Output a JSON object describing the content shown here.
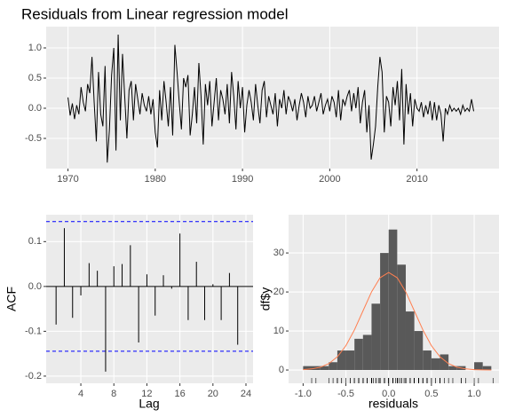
{
  "chart_data": [
    {
      "type": "line",
      "title": "Residuals from Linear regression model",
      "color": "#000000",
      "x": [
        1970,
        1970.25,
        1970.5,
        1970.75,
        1971,
        1971.25,
        1971.5,
        1971.75,
        1972,
        1972.25,
        1972.5,
        1972.75,
        1973,
        1973.25,
        1973.5,
        1973.75,
        1974,
        1974.25,
        1974.5,
        1974.75,
        1975,
        1975.25,
        1975.5,
        1975.75,
        1976,
        1976.25,
        1976.5,
        1976.75,
        1977,
        1977.25,
        1977.5,
        1977.75,
        1978,
        1978.25,
        1978.5,
        1978.75,
        1979,
        1979.25,
        1979.5,
        1979.75,
        1980,
        1980.25,
        1980.5,
        1980.75,
        1981,
        1981.25,
        1981.5,
        1981.75,
        1982,
        1982.25,
        1982.5,
        1982.75,
        1983,
        1983.25,
        1983.5,
        1983.75,
        1984,
        1984.25,
        1984.5,
        1984.75,
        1985,
        1985.25,
        1985.5,
        1985.75,
        1986,
        1986.25,
        1986.5,
        1986.75,
        1987,
        1987.25,
        1987.5,
        1987.75,
        1988,
        1988.25,
        1988.5,
        1988.75,
        1989,
        1989.25,
        1989.5,
        1989.75,
        1990,
        1990.25,
        1990.5,
        1990.75,
        1991,
        1991.25,
        1991.5,
        1991.75,
        1992,
        1992.25,
        1992.5,
        1992.75,
        1993,
        1993.25,
        1993.5,
        1993.75,
        1994,
        1994.25,
        1994.5,
        1994.75,
        1995,
        1995.25,
        1995.5,
        1995.75,
        1996,
        1996.25,
        1996.5,
        1996.75,
        1997,
        1997.25,
        1997.5,
        1997.75,
        1998,
        1998.25,
        1998.5,
        1998.75,
        1999,
        1999.25,
        1999.5,
        1999.75,
        2000,
        2000.25,
        2000.5,
        2000.75,
        2001,
        2001.25,
        2001.5,
        2001.75,
        2002,
        2002.25,
        2002.5,
        2002.75,
        2003,
        2003.25,
        2003.5,
        2003.75,
        2004,
        2004.25,
        2004.5,
        2004.75,
        2005,
        2005.25,
        2005.5,
        2005.75,
        2006,
        2006.25,
        2006.5,
        2006.75,
        2007,
        2007.25,
        2007.5,
        2007.75,
        2008,
        2008.25,
        2008.5,
        2008.75,
        2009,
        2009.25,
        2009.5,
        2009.75,
        2010,
        2010.25,
        2010.5,
        2010.75,
        2011,
        2011.25,
        2011.5,
        2011.75,
        2012,
        2012.25,
        2012.5,
        2012.75,
        2013,
        2013.25,
        2013.5,
        2013.75,
        2014,
        2014.25,
        2014.5,
        2014.75,
        2015,
        2015.25,
        2015.5,
        2015.75,
        2016,
        2016.25,
        2016.5
      ],
      "values": [
        0.18,
        -0.12,
        0.08,
        -0.18,
        0.05,
        -0.1,
        0.35,
        0.1,
        -0.05,
        0.4,
        0.25,
        0.85,
        0.1,
        -0.55,
        0.6,
        -0.1,
        -0.3,
        0.7,
        -0.9,
        -0.35,
        0.55,
        1.0,
        -0.7,
        1.22,
        -0.2,
        0.9,
        0.2,
        -0.5,
        0.3,
        0.45,
        -0.2,
        0.4,
        0.15,
        -0.1,
        0.25,
        0.05,
        -0.05,
        0.2,
        -0.1,
        0.15,
        -0.4,
        -0.65,
        0.3,
        -0.2,
        0.45,
        0.1,
        -0.3,
        0.35,
        -0.45,
        1.05,
        0.6,
        0.1,
        -0.35,
        0.5,
        0.35,
        0.55,
        -0.45,
        -0.1,
        0.35,
        -0.25,
        0.75,
        0.2,
        -0.6,
        0.4,
        0.05,
        0.45,
        -0.3,
        0.1,
        0.5,
        -0.2,
        0.3,
        0.15,
        -0.1,
        0.4,
        -0.25,
        0.6,
        0.2,
        -0.35,
        0.45,
        0.0,
        0.35,
        -0.4,
        0.05,
        0.3,
        0.1,
        -0.2,
        0.4,
        0.05,
        -0.25,
        0.3,
        0.45,
        -0.15,
        0.2,
        0.05,
        -0.1,
        0.25,
        -0.3,
        0.15,
        0.0,
        0.3,
        -0.1,
        0.2,
        0.1,
        -0.05,
        0.15,
        -0.2,
        0.05,
        0.25,
        0.1,
        -0.15,
        0.2,
        0.0,
        0.05,
        0.2,
        -0.05,
        0.1,
        0.25,
        -0.1,
        0.05,
        0.15,
        -0.05,
        0.2,
        0.1,
        -0.15,
        0.3,
        -0.2,
        0.15,
        0.05,
        0.2,
        0.3,
        -0.05,
        0.25,
        0.0,
        0.35,
        -0.25,
        0.1,
        0.3,
        -0.4,
        0.05,
        -0.85,
        -0.6,
        -0.3,
        0.35,
        0.85,
        0.6,
        -0.4,
        0.2,
        0.1,
        -0.3,
        0.35,
        0.05,
        0.45,
        -0.2,
        0.65,
        -0.6,
        0.4,
        -0.1,
        0.25,
        -0.3,
        0.15,
        0.0,
        -0.05,
        0.1,
        -0.15,
        0.05,
        -0.1,
        0.12,
        -0.2,
        0.1,
        -0.2,
        0.05,
        -0.1,
        -0.55,
        0.0,
        -0.1,
        0.05,
        -0.05,
        0.0,
        -0.05,
        0.0,
        -0.1,
        0.05,
        -0.05,
        0.0,
        -0.05,
        0.15,
        -0.05
      ],
      "xlim": [
        1967.5,
        2019.4
      ],
      "ylim": [
        -1.0,
        1.353
      ],
      "xticks": [
        1970,
        1980,
        1990,
        2000,
        2010
      ],
      "yticks": [
        {
          "value": -0.5,
          "label": "-0.5"
        },
        {
          "value": 0,
          "label": "0.0"
        },
        {
          "value": 0.5,
          "label": "0.5"
        },
        {
          "value": 1.0,
          "label": "1.0"
        }
      ],
      "grid": true
    },
    {
      "type": "acf",
      "x_label": "Lag",
      "y_label": "ACF",
      "color": "#000000",
      "ci_color": "#0000FF",
      "x": [
        1,
        2,
        3,
        4,
        5,
        6,
        7,
        8,
        9,
        10,
        11,
        12,
        13,
        14,
        15,
        16,
        17,
        18,
        19,
        20,
        21,
        22,
        23
      ],
      "values": [
        -0.085,
        0.13,
        -0.07,
        -0.02,
        0.052,
        0.035,
        -0.19,
        0.045,
        0.05,
        0.092,
        -0.125,
        0.027,
        -0.065,
        0.025,
        -0.005,
        0.118,
        -0.075,
        0.055,
        -0.075,
        0.005,
        -0.075,
        0.03,
        -0.13
      ],
      "ci_bounds": [
        -0.1446,
        0.1446
      ],
      "xlim": [
        -0.2,
        24.86
      ],
      "ylim": [
        -0.216,
        0.16
      ],
      "xticks": [
        4,
        8,
        12,
        16,
        20,
        24
      ],
      "yticks": [
        -0.2,
        -0.1,
        {
          "value": 0,
          "label": "0.0"
        },
        0.1
      ],
      "grid": true
    },
    {
      "type": "histogram",
      "x_label": "residuals",
      "y_label": "df$y",
      "color": "#595959",
      "curve_color": "#FF7F50",
      "bins": [
        -1.0,
        -0.9,
        -0.8,
        -0.7,
        -0.6,
        -0.5,
        -0.4,
        -0.3,
        -0.2,
        -0.1,
        0,
        0.1,
        0.2,
        0.3,
        0.4,
        0.5,
        0.6,
        0.7,
        0.8,
        0.9,
        1.0,
        1.1,
        1.2
      ],
      "counts": [
        1,
        1,
        1,
        2,
        5,
        5,
        8,
        9,
        17,
        30,
        36,
        27,
        15,
        10,
        5,
        3,
        4,
        1,
        1,
        0,
        2,
        1
      ],
      "curve": {
        "x": [
          -1.0,
          -0.9,
          -0.8,
          -0.7,
          -0.6,
          -0.5,
          -0.4,
          -0.3,
          -0.2,
          -0.1,
          0,
          0.1,
          0.2,
          0.3,
          0.4,
          0.5,
          0.6,
          0.7,
          0.8,
          0.9,
          1.0,
          1.1,
          1.2
        ],
        "y": [
          0.1,
          0.28,
          0.71,
          1.64,
          3.38,
          6.23,
          10.28,
          15.16,
          20.03,
          23.65,
          25,
          23.65,
          20.03,
          15.16,
          10.28,
          6.23,
          3.38,
          1.64,
          0.71,
          0.28,
          0.1,
          0.03,
          0.01
        ]
      },
      "xlim": [
        -1.17,
        1.29
      ],
      "ylim": [
        -3.4,
        39.8
      ],
      "xticks": [
        {
          "value": -1.0,
          "label": "-1.0"
        },
        {
          "value": -0.5,
          "label": "-0.5"
        },
        {
          "value": 0,
          "label": "0.0"
        },
        {
          "value": 0.5,
          "label": "0.5"
        },
        {
          "value": 1.0,
          "label": "1.0"
        }
      ],
      "yticks": [
        0,
        10,
        20,
        30
      ],
      "grid": true
    }
  ]
}
